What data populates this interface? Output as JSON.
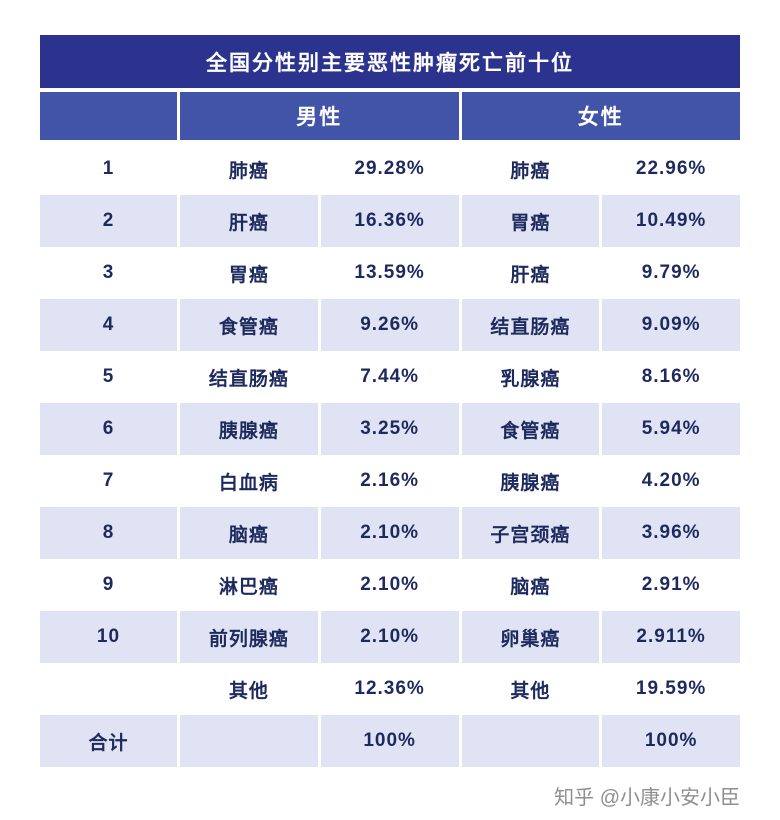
{
  "title": "全国分性别主要恶性肿瘤死亡前十位",
  "header": {
    "male": "男性",
    "female": "女性"
  },
  "rows": [
    {
      "rank": "1",
      "male_name": "肺癌",
      "male_pct": "29.28%",
      "female_name": "肺癌",
      "female_pct": "22.96%"
    },
    {
      "rank": "2",
      "male_name": "肝癌",
      "male_pct": "16.36%",
      "female_name": "胃癌",
      "female_pct": "10.49%"
    },
    {
      "rank": "3",
      "male_name": "胃癌",
      "male_pct": "13.59%",
      "female_name": "肝癌",
      "female_pct": "9.79%"
    },
    {
      "rank": "4",
      "male_name": "食管癌",
      "male_pct": "9.26%",
      "female_name": "结直肠癌",
      "female_pct": "9.09%"
    },
    {
      "rank": "5",
      "male_name": "结直肠癌",
      "male_pct": "7.44%",
      "female_name": "乳腺癌",
      "female_pct": "8.16%"
    },
    {
      "rank": "6",
      "male_name": "胰腺癌",
      "male_pct": "3.25%",
      "female_name": "食管癌",
      "female_pct": "5.94%"
    },
    {
      "rank": "7",
      "male_name": "白血病",
      "male_pct": "2.16%",
      "female_name": "胰腺癌",
      "female_pct": "4.20%"
    },
    {
      "rank": "8",
      "male_name": "脑癌",
      "male_pct": "2.10%",
      "female_name": "子宫颈癌",
      "female_pct": "3.96%"
    },
    {
      "rank": "9",
      "male_name": "淋巴癌",
      "male_pct": "2.10%",
      "female_name": "脑癌",
      "female_pct": "2.91%"
    },
    {
      "rank": "10",
      "male_name": "前列腺癌",
      "male_pct": "2.10%",
      "female_name": "卵巢癌",
      "female_pct": "2.911%"
    },
    {
      "rank": "",
      "male_name": "其他",
      "male_pct": "12.36%",
      "female_name": "其他",
      "female_pct": "19.59%"
    },
    {
      "rank": "合计",
      "male_name": "",
      "male_pct": "100%",
      "female_name": "",
      "female_pct": "100%"
    }
  ],
  "watermark": "知乎 @小康小安小臣",
  "colors": {
    "title_bg": "#2c338f",
    "header_bg": "#4254a8",
    "stripe_bg": "#dfe3f3",
    "body_text": "#1e2a5e",
    "watermark_text": "#8f8f8f"
  },
  "chart_data": {
    "type": "table",
    "title": "全国分性别主要恶性肿瘤死亡前十位",
    "groups": [
      "男性",
      "女性"
    ],
    "male": {
      "categories": [
        "肺癌",
        "肝癌",
        "胃癌",
        "食管癌",
        "结直肠癌",
        "胰腺癌",
        "白血病",
        "脑癌",
        "淋巴癌",
        "前列腺癌",
        "其他"
      ],
      "values_pct": [
        29.28,
        16.36,
        13.59,
        9.26,
        7.44,
        3.25,
        2.16,
        2.1,
        2.1,
        2.1,
        12.36
      ],
      "total_pct": 100
    },
    "female": {
      "categories": [
        "肺癌",
        "胃癌",
        "肝癌",
        "结直肠癌",
        "乳腺癌",
        "食管癌",
        "胰腺癌",
        "子宫颈癌",
        "脑癌",
        "卵巢癌",
        "其他"
      ],
      "values_pct": [
        22.96,
        10.49,
        9.79,
        9.09,
        8.16,
        5.94,
        4.2,
        3.96,
        2.91,
        2.911,
        19.59
      ],
      "total_pct": 100
    }
  }
}
